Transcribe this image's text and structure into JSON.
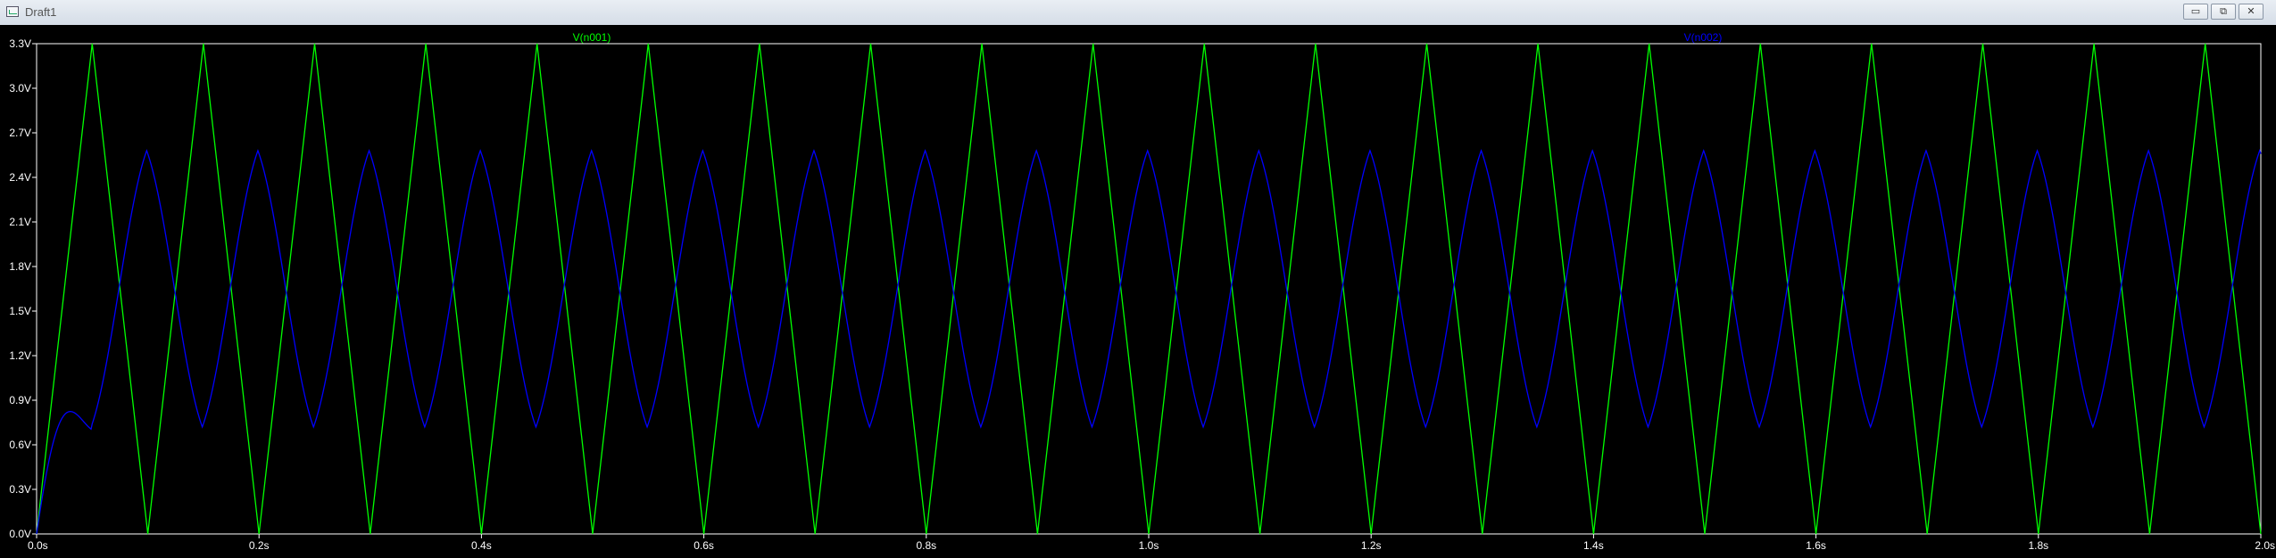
{
  "window": {
    "title": "Draft1",
    "buttons": {
      "minimize": "▭",
      "restore": "⧉",
      "close": "✕"
    }
  },
  "chart_data": {
    "type": "line",
    "title": "",
    "xlabel": "",
    "ylabel": "",
    "xlim": [
      0,
      2.0
    ],
    "ylim": [
      0,
      3.3
    ],
    "grid": false,
    "background": "#000000",
    "axis_color": "#ffffff",
    "x_ticks": [
      {
        "value": 0.0,
        "label": "0.0s"
      },
      {
        "value": 0.2,
        "label": "0.2s"
      },
      {
        "value": 0.4,
        "label": "0.4s"
      },
      {
        "value": 0.6,
        "label": "0.6s"
      },
      {
        "value": 0.8,
        "label": "0.8s"
      },
      {
        "value": 1.0,
        "label": "1.0s"
      },
      {
        "value": 1.2,
        "label": "1.2s"
      },
      {
        "value": 1.4,
        "label": "1.4s"
      },
      {
        "value": 1.6,
        "label": "1.6s"
      },
      {
        "value": 1.8,
        "label": "1.8s"
      },
      {
        "value": 2.0,
        "label": "2.0s"
      }
    ],
    "y_ticks": [
      {
        "value": 0.0,
        "label": "0.0V"
      },
      {
        "value": 0.3,
        "label": "0.3V"
      },
      {
        "value": 0.6,
        "label": "0.6V"
      },
      {
        "value": 0.9,
        "label": "0.9V"
      },
      {
        "value": 1.2,
        "label": "1.2V"
      },
      {
        "value": 1.5,
        "label": "1.5V"
      },
      {
        "value": 1.8,
        "label": "1.8V"
      },
      {
        "value": 2.1,
        "label": "2.1V"
      },
      {
        "value": 2.4,
        "label": "2.4V"
      },
      {
        "value": 2.7,
        "label": "2.7V"
      },
      {
        "value": 3.0,
        "label": "3.0V"
      },
      {
        "value": 3.3,
        "label": "3.3V"
      }
    ],
    "series": [
      {
        "name": "V(n001)",
        "color": "#00ff00",
        "shape": "triangle",
        "period": 0.1,
        "min": 0.0,
        "max": 3.3,
        "phase": 0.0
      },
      {
        "name": "V(n002)",
        "color": "#0000ff",
        "shape": "smoothed-triangle",
        "period": 0.1,
        "min": 0.72,
        "max": 2.58,
        "phase": 0.049
      }
    ]
  }
}
